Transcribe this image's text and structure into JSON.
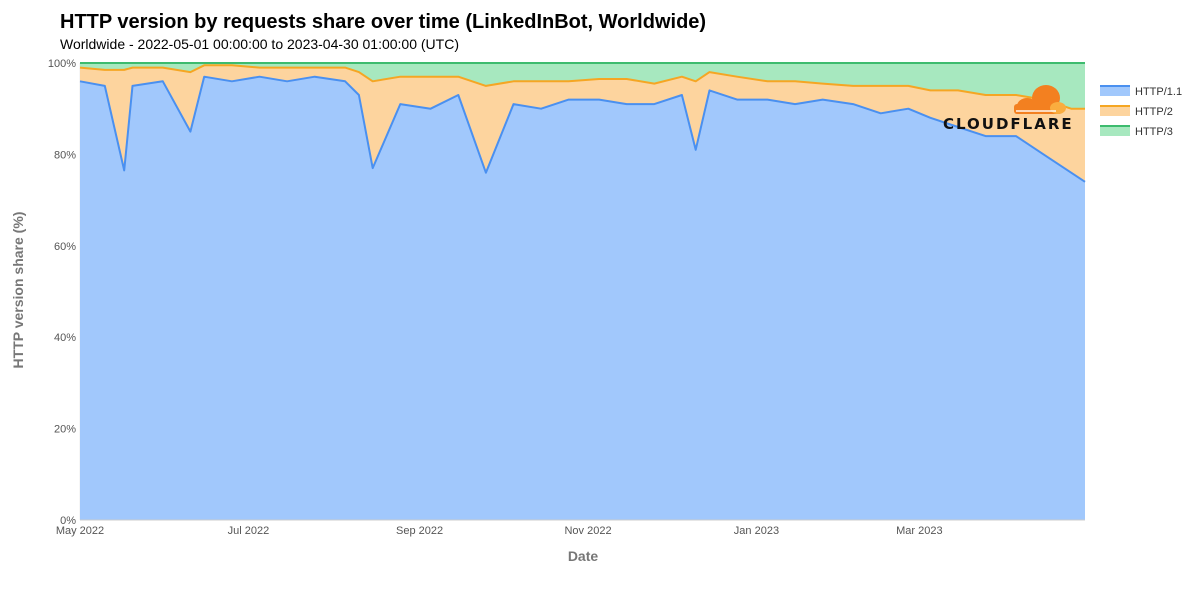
{
  "header": {
    "title": "HTTP version by requests share over time (LinkedInBot, Worldwide)",
    "subtitle": "Worldwide - 2022-05-01 00:00:00 to 2023-04-30 01:00:00 (UTC)"
  },
  "logo": {
    "text": "CLOUDFLARE"
  },
  "chart_data": {
    "type": "area",
    "stacked": true,
    "xlabel": "Date",
    "ylabel": "HTTP version share (%)",
    "ylim": [
      0,
      100
    ],
    "xlim": [
      "2022-05-01",
      "2023-04-30"
    ],
    "x_ticks": [
      {
        "date": "2022-05-01",
        "label": "May 2022"
      },
      {
        "date": "2022-07-01",
        "label": "Jul 2022"
      },
      {
        "date": "2022-09-01",
        "label": "Sep 2022"
      },
      {
        "date": "2022-11-01",
        "label": "Nov 2022"
      },
      {
        "date": "2023-01-01",
        "label": "Jan 2023"
      },
      {
        "date": "2023-03-01",
        "label": "Mar 2023"
      }
    ],
    "y_ticks": [
      {
        "value": 0,
        "label": "0%"
      },
      {
        "value": 20,
        "label": "20%"
      },
      {
        "value": 40,
        "label": "40%"
      },
      {
        "value": 60,
        "label": "60%"
      },
      {
        "value": 80,
        "label": "80%"
      },
      {
        "value": 100,
        "label": "100%"
      }
    ],
    "grid": true,
    "legend_position": "right",
    "x": [
      "2022-05-01",
      "2022-05-10",
      "2022-05-17",
      "2022-05-20",
      "2022-05-31",
      "2022-06-10",
      "2022-06-15",
      "2022-06-25",
      "2022-07-05",
      "2022-07-15",
      "2022-07-25",
      "2022-08-05",
      "2022-08-10",
      "2022-08-15",
      "2022-08-25",
      "2022-09-05",
      "2022-09-15",
      "2022-09-25",
      "2022-10-05",
      "2022-10-15",
      "2022-10-25",
      "2022-11-05",
      "2022-11-15",
      "2022-11-25",
      "2022-12-05",
      "2022-12-10",
      "2022-12-15",
      "2022-12-25",
      "2023-01-05",
      "2023-01-15",
      "2023-01-25",
      "2023-02-05",
      "2023-02-15",
      "2023-02-25",
      "2023-03-05",
      "2023-03-15",
      "2023-03-25",
      "2023-04-05",
      "2023-04-15",
      "2023-04-25",
      "2023-04-30"
    ],
    "series": [
      {
        "name": "HTTP/1.1",
        "color": "#4a90f0",
        "fill": "#a1c8fc",
        "values": [
          96,
          95,
          76.5,
          95,
          96,
          85,
          97,
          96,
          97,
          96,
          97,
          96,
          93,
          77,
          91,
          90,
          93,
          76,
          91,
          90,
          92,
          92,
          91,
          91,
          93,
          81,
          94,
          92,
          92,
          91,
          92,
          91,
          89,
          90,
          88,
          86,
          84,
          84,
          80,
          76,
          74
        ]
      },
      {
        "name": "HTTP/2",
        "color": "#f5a623",
        "fill": "#fdd49e",
        "values": [
          3,
          3.5,
          22,
          4,
          3,
          13,
          2.5,
          3.5,
          2,
          3,
          2,
          3,
          5,
          19,
          6,
          7,
          4,
          19,
          5,
          6,
          4,
          4.5,
          5.5,
          4.5,
          4,
          15,
          4,
          5,
          4,
          5,
          3.5,
          4,
          6,
          5,
          6,
          8,
          9,
          9,
          12,
          14,
          16
        ]
      },
      {
        "name": "HTTP/3",
        "color": "#3dbb6e",
        "fill": "#a7e8bf",
        "values": [
          1,
          1.5,
          1.5,
          1,
          1,
          2,
          0.5,
          0.5,
          1,
          1,
          1,
          1,
          2,
          4,
          3,
          3,
          3,
          5,
          4,
          4,
          4,
          3.5,
          3.5,
          4.5,
          3,
          4,
          2,
          3,
          4,
          4,
          4.5,
          5,
          5,
          5,
          6,
          6,
          7,
          7,
          8,
          10,
          10
        ]
      }
    ]
  }
}
